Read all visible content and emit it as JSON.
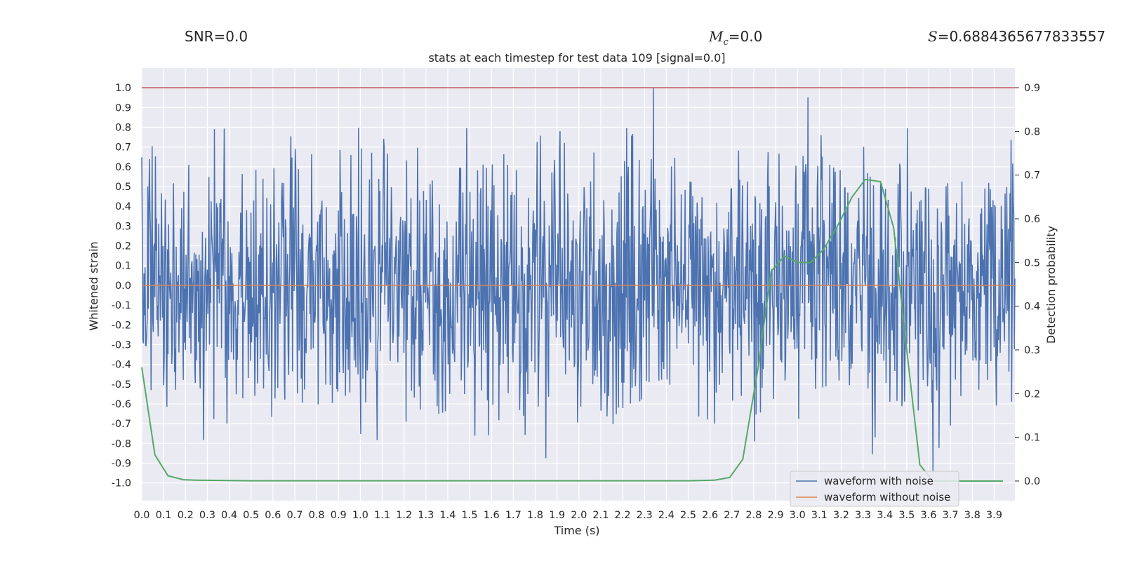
{
  "header": {
    "snr_label": "SNR=0.0",
    "mc_symbol": "M",
    "mc_sub": "c",
    "mc_value": "=0.0",
    "s_symbol": "S",
    "s_value": "=0.6884365677833557"
  },
  "colors": {
    "background": "#eaeaf2",
    "grid": "#ffffff",
    "noisy": "#4c72b0",
    "clean": "#dd8452",
    "prob": "#55a868",
    "threshold": "#c44e52"
  },
  "chart_data": {
    "type": "line",
    "title": "stats at each timestep for test data 109 [signal=0.0]",
    "xlabel": "Time (s)",
    "ylabel": "Whitened strain",
    "y2label": "Detection probability",
    "xlim": [
      0.0,
      3.995
    ],
    "ylim": [
      -1.09,
      1.1
    ],
    "y2lim": [
      -0.045,
      0.945
    ],
    "xticks": [
      "0.0",
      "0.1",
      "0.2",
      "0.3",
      "0.4",
      "0.5",
      "0.6",
      "0.7",
      "0.8",
      "0.9",
      "1.0",
      "1.1",
      "1.2",
      "1.3",
      "1.4",
      "1.5",
      "1.6",
      "1.7",
      "1.8",
      "1.9",
      "2.0",
      "2.1",
      "2.2",
      "2.3",
      "2.4",
      "2.5",
      "2.6",
      "2.7",
      "2.8",
      "2.9",
      "3.0",
      "3.1",
      "3.2",
      "3.3",
      "3.4",
      "3.5",
      "3.6",
      "3.7",
      "3.8",
      "3.9"
    ],
    "yticks": [
      "1.0",
      "0.9",
      "0.8",
      "0.7",
      "0.6",
      "0.5",
      "0.4",
      "0.3",
      "0.2",
      "0.1",
      "0.0",
      "-0.1",
      "-0.2",
      "-0.3",
      "-0.4",
      "-0.5",
      "-0.6",
      "-0.7",
      "-0.8",
      "-0.9",
      "-1.0"
    ],
    "y2ticks": [
      "0.9",
      "0.8",
      "0.7",
      "0.6",
      "0.5",
      "0.4",
      "0.3",
      "0.2",
      "0.1",
      "0.0"
    ],
    "legend": {
      "location": "lower-right",
      "entries": [
        "waveform with noise",
        "waveform without noise"
      ]
    },
    "threshold_y": 1.0,
    "noise": {
      "n_samples": 1600,
      "typical_amplitude": 0.35,
      "max": 1.0,
      "min": -0.95,
      "peak_time": 2.34
    },
    "clean_signal": {
      "x": [
        0.0,
        3.995
      ],
      "y": [
        0.0,
        0.0
      ]
    },
    "probability": {
      "x": [
        0.0,
        0.06,
        0.12,
        0.19,
        0.25,
        0.5,
        1.0,
        1.5,
        2.0,
        2.5,
        2.62,
        2.69,
        2.75,
        2.82,
        2.88,
        2.94,
        3.0,
        3.06,
        3.12,
        3.19,
        3.25,
        3.31,
        3.38,
        3.44,
        3.5,
        3.56,
        3.62,
        3.69,
        3.75,
        3.81,
        3.88,
        3.94
      ],
      "y": [
        0.26,
        0.06,
        0.012,
        0.003,
        0.002,
        0.0005,
        0.0005,
        0.0005,
        0.0005,
        0.0005,
        0.002,
        0.008,
        0.05,
        0.26,
        0.48,
        0.515,
        0.5,
        0.5,
        0.53,
        0.59,
        0.65,
        0.69,
        0.685,
        0.58,
        0.3,
        0.037,
        0.0,
        0.0,
        0.0,
        0.0,
        0.0,
        0.0
      ]
    }
  }
}
